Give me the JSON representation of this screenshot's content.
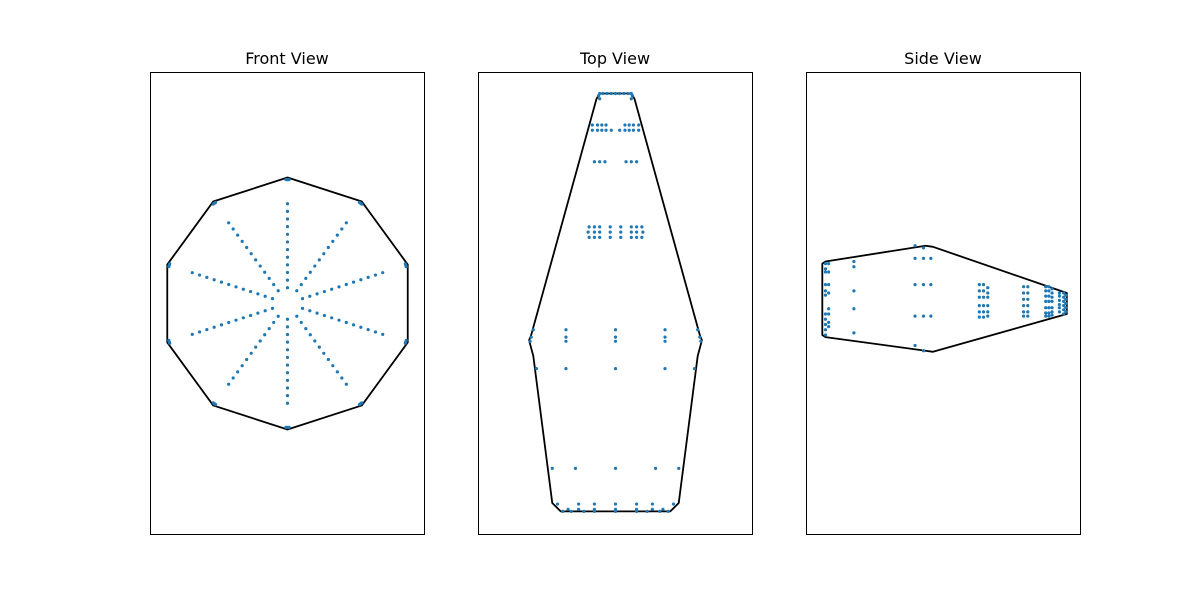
{
  "chart_data": [
    {
      "type": "scatter",
      "title": "Front View",
      "xlabel": "",
      "ylabel": "",
      "axes_visible": false,
      "xlim": [
        -1.3,
        1.3
      ],
      "ylim": [
        -2.2,
        2.2
      ],
      "equal_aspect": true,
      "outline": {
        "shape": "decagon",
        "vertices": [
          [
            0,
            1.2
          ],
          [
            0.705,
            0.971
          ],
          [
            1.141,
            0.371
          ],
          [
            1.141,
            -0.371
          ],
          [
            0.705,
            -0.971
          ],
          [
            0,
            -1.2
          ],
          [
            -0.705,
            -0.971
          ],
          [
            -1.141,
            -0.371
          ],
          [
            -1.141,
            0.371
          ],
          [
            -0.705,
            0.971
          ]
        ],
        "color": "#000000"
      },
      "points": {
        "pattern": "10 radial spokes of points from radius 0.15 to 0.95, plus clusters near each outline vertex",
        "spokes": 10,
        "radius_range": [
          0.15,
          0.95
        ],
        "points_per_spoke": 12,
        "vertex_cluster_radius": 1.18,
        "color": "#1f77b4"
      }
    },
    {
      "type": "scatter",
      "title": "Top View",
      "xlabel": "",
      "ylabel": "",
      "axes_visible": false,
      "xlim": [
        -1.3,
        1.3
      ],
      "ylim": [
        -2.2,
        2.2
      ],
      "equal_aspect": true,
      "outline": {
        "shape": "tapered hull",
        "vertices": [
          [
            -0.15,
            2.0
          ],
          [
            0.15,
            2.0
          ],
          [
            0.18,
            1.95
          ],
          [
            0.8,
            -0.3
          ],
          [
            0.82,
            -0.35
          ],
          [
            0.78,
            -0.5
          ],
          [
            0.6,
            -1.9
          ],
          [
            0.52,
            -1.98
          ],
          [
            -0.52,
            -1.98
          ],
          [
            -0.6,
            -1.9
          ],
          [
            -0.78,
            -0.5
          ],
          [
            -0.82,
            -0.35
          ],
          [
            -0.8,
            -0.3
          ],
          [
            -0.18,
            1.95
          ]
        ],
        "color": "#000000"
      },
      "points": [
        [
          -0.15,
          2.0
        ],
        [
          -0.12,
          2.0
        ],
        [
          -0.08,
          2.0
        ],
        [
          -0.04,
          2.0
        ],
        [
          0.0,
          2.0
        ],
        [
          0.04,
          2.0
        ],
        [
          0.08,
          2.0
        ],
        [
          0.12,
          2.0
        ],
        [
          0.15,
          2.0
        ],
        [
          -0.16,
          1.98
        ],
        [
          0.16,
          1.98
        ],
        [
          -0.15,
          1.95
        ],
        [
          0.15,
          1.95
        ],
        [
          -0.22,
          1.7
        ],
        [
          -0.17,
          1.7
        ],
        [
          -0.13,
          1.7
        ],
        [
          -0.09,
          1.7
        ],
        [
          0.09,
          1.7
        ],
        [
          0.13,
          1.7
        ],
        [
          0.17,
          1.7
        ],
        [
          0.22,
          1.7
        ],
        [
          -0.22,
          1.65
        ],
        [
          -0.17,
          1.65
        ],
        [
          -0.13,
          1.65
        ],
        [
          -0.09,
          1.65
        ],
        [
          -0.04,
          1.65
        ],
        [
          0.04,
          1.65
        ],
        [
          0.09,
          1.65
        ],
        [
          0.13,
          1.65
        ],
        [
          0.17,
          1.65
        ],
        [
          0.22,
          1.65
        ],
        [
          -0.2,
          1.35
        ],
        [
          -0.15,
          1.35
        ],
        [
          -0.1,
          1.35
        ],
        [
          0.1,
          1.35
        ],
        [
          0.15,
          1.35
        ],
        [
          0.2,
          1.35
        ],
        [
          -0.25,
          0.73
        ],
        [
          -0.2,
          0.73
        ],
        [
          -0.15,
          0.73
        ],
        [
          -0.05,
          0.73
        ],
        [
          0.05,
          0.73
        ],
        [
          0.15,
          0.73
        ],
        [
          0.2,
          0.73
        ],
        [
          0.25,
          0.73
        ],
        [
          -0.26,
          0.68
        ],
        [
          -0.2,
          0.68
        ],
        [
          -0.15,
          0.68
        ],
        [
          -0.05,
          0.68
        ],
        [
          0.05,
          0.68
        ],
        [
          0.15,
          0.68
        ],
        [
          0.2,
          0.68
        ],
        [
          0.26,
          0.68
        ],
        [
          -0.25,
          0.63
        ],
        [
          -0.2,
          0.63
        ],
        [
          -0.15,
          0.63
        ],
        [
          -0.05,
          0.63
        ],
        [
          0.05,
          0.63
        ],
        [
          0.15,
          0.63
        ],
        [
          0.2,
          0.63
        ],
        [
          0.25,
          0.63
        ],
        [
          -0.78,
          -0.25
        ],
        [
          -0.47,
          -0.25
        ],
        [
          0.0,
          -0.25
        ],
        [
          0.47,
          -0.25
        ],
        [
          0.78,
          -0.25
        ],
        [
          -0.8,
          -0.32
        ],
        [
          -0.47,
          -0.32
        ],
        [
          0.0,
          -0.32
        ],
        [
          0.47,
          -0.32
        ],
        [
          0.8,
          -0.32
        ],
        [
          -0.81,
          -0.36
        ],
        [
          -0.47,
          -0.36
        ],
        [
          0.0,
          -0.36
        ],
        [
          0.47,
          -0.36
        ],
        [
          0.81,
          -0.36
        ],
        [
          -0.75,
          -0.62
        ],
        [
          -0.47,
          -0.62
        ],
        [
          0.0,
          -0.62
        ],
        [
          0.47,
          -0.62
        ],
        [
          0.75,
          -0.62
        ],
        [
          -0.6,
          -1.57
        ],
        [
          -0.38,
          -1.57
        ],
        [
          0.0,
          -1.57
        ],
        [
          0.38,
          -1.57
        ],
        [
          0.6,
          -1.57
        ],
        [
          -0.55,
          -1.91
        ],
        [
          -0.35,
          -1.91
        ],
        [
          -0.2,
          -1.91
        ],
        [
          0.0,
          -1.91
        ],
        [
          0.2,
          -1.91
        ],
        [
          0.35,
          -1.91
        ],
        [
          0.55,
          -1.91
        ],
        [
          -0.45,
          -1.96
        ],
        [
          -0.35,
          -1.96
        ],
        [
          -0.2,
          -1.96
        ],
        [
          0.0,
          -1.96
        ],
        [
          0.2,
          -1.96
        ],
        [
          0.35,
          -1.96
        ],
        [
          0.45,
          -1.96
        ],
        [
          -0.5,
          -1.98
        ],
        [
          -0.42,
          -1.98
        ],
        [
          -0.3,
          -1.98
        ],
        [
          -0.2,
          -1.98
        ],
        [
          0.0,
          -1.98
        ],
        [
          0.2,
          -1.98
        ],
        [
          0.3,
          -1.98
        ],
        [
          0.42,
          -1.98
        ],
        [
          0.5,
          -1.98
        ]
      ],
      "point_color": "#1f77b4"
    },
    {
      "type": "scatter",
      "title": "Side View",
      "xlabel": "",
      "ylabel": "",
      "axes_visible": false,
      "xlim": [
        -1.3,
        1.3
      ],
      "ylim": [
        -2.2,
        2.2
      ],
      "equal_aspect": true,
      "outline": {
        "shape": "tapered profile",
        "vertices": [
          [
            -1.15,
            0.38
          ],
          [
            -1.12,
            0.4
          ],
          [
            -0.17,
            0.55
          ],
          [
            -0.1,
            0.54
          ],
          [
            1.17,
            0.1
          ],
          [
            1.17,
            -0.1
          ],
          [
            -0.1,
            -0.46
          ],
          [
            -0.17,
            -0.45
          ],
          [
            -1.12,
            -0.32
          ],
          [
            -1.15,
            -0.3
          ]
        ],
        "color": "#000000"
      },
      "points": [
        [
          -1.12,
          0.38
        ],
        [
          -1.12,
          0.33
        ],
        [
          -1.12,
          0.3
        ],
        [
          -1.12,
          0.18
        ],
        [
          -1.12,
          0.12
        ],
        [
          -1.12,
          0.08
        ],
        [
          -1.12,
          -0.1
        ],
        [
          -1.12,
          -0.15
        ],
        [
          -1.12,
          -0.2
        ],
        [
          -1.12,
          -0.25
        ],
        [
          -1.12,
          -0.3
        ],
        [
          -1.09,
          0.38
        ],
        [
          -1.09,
          0.3
        ],
        [
          -1.09,
          0.18
        ],
        [
          -1.09,
          0.1
        ],
        [
          -1.09,
          -0.05
        ],
        [
          -1.09,
          -0.1
        ],
        [
          -1.09,
          -0.18
        ],
        [
          -1.09,
          -0.22
        ],
        [
          -0.85,
          0.4
        ],
        [
          -0.85,
          0.35
        ],
        [
          -0.85,
          0.12
        ],
        [
          -0.85,
          -0.05
        ],
        [
          -0.85,
          -0.28
        ],
        [
          -0.27,
          0.55
        ],
        [
          -0.27,
          0.43
        ],
        [
          -0.27,
          0.18
        ],
        [
          -0.27,
          -0.12
        ],
        [
          -0.27,
          -0.4
        ],
        [
          -0.19,
          0.53
        ],
        [
          -0.12,
          0.43
        ],
        [
          -0.19,
          0.43
        ],
        [
          -0.19,
          0.18
        ],
        [
          -0.12,
          0.18
        ],
        [
          -0.19,
          -0.12
        ],
        [
          -0.12,
          -0.12
        ],
        [
          -0.19,
          -0.45
        ],
        [
          0.34,
          0.18
        ],
        [
          0.34,
          0.12
        ],
        [
          0.34,
          0.06
        ],
        [
          0.34,
          -0.02
        ],
        [
          0.34,
          -0.08
        ],
        [
          0.34,
          -0.13
        ],
        [
          0.38,
          0.18
        ],
        [
          0.38,
          0.12
        ],
        [
          0.38,
          0.06
        ],
        [
          0.38,
          -0.02
        ],
        [
          0.38,
          -0.08
        ],
        [
          0.38,
          -0.13
        ],
        [
          0.42,
          0.15
        ],
        [
          0.42,
          0.1
        ],
        [
          0.42,
          0.06
        ],
        [
          0.42,
          -0.02
        ],
        [
          0.42,
          -0.08
        ],
        [
          0.42,
          -0.12
        ],
        [
          0.76,
          0.16
        ],
        [
          0.76,
          0.1
        ],
        [
          0.76,
          0.04
        ],
        [
          0.76,
          -0.02
        ],
        [
          0.76,
          -0.08
        ],
        [
          0.76,
          -0.12
        ],
        [
          0.8,
          0.16
        ],
        [
          0.8,
          0.1
        ],
        [
          0.8,
          0.04
        ],
        [
          0.8,
          -0.02
        ],
        [
          0.8,
          -0.08
        ],
        [
          0.8,
          -0.12
        ],
        [
          0.97,
          0.16
        ],
        [
          0.97,
          0.12
        ],
        [
          0.97,
          0.07
        ],
        [
          0.97,
          0.02
        ],
        [
          0.97,
          -0.04
        ],
        [
          0.97,
          -0.09
        ],
        [
          0.97,
          -0.12
        ],
        [
          1.0,
          0.16
        ],
        [
          1.0,
          0.12
        ],
        [
          1.0,
          0.07
        ],
        [
          1.0,
          0.02
        ],
        [
          1.0,
          -0.04
        ],
        [
          1.0,
          -0.09
        ],
        [
          1.0,
          -0.12
        ],
        [
          1.03,
          0.14
        ],
        [
          1.03,
          0.1
        ],
        [
          1.03,
          0.06
        ],
        [
          1.03,
          0.02
        ],
        [
          1.03,
          -0.04
        ],
        [
          1.03,
          -0.08
        ],
        [
          1.03,
          -0.11
        ],
        [
          1.1,
          0.1
        ],
        [
          1.1,
          0.07
        ],
        [
          1.1,
          0.03
        ],
        [
          1.1,
          -0.01
        ],
        [
          1.1,
          -0.04
        ],
        [
          1.1,
          -0.08
        ],
        [
          1.14,
          0.1
        ],
        [
          1.14,
          0.06
        ],
        [
          1.14,
          0.02
        ],
        [
          1.14,
          -0.02
        ],
        [
          1.14,
          -0.06
        ],
        [
          1.14,
          -0.1
        ],
        [
          1.16,
          0.08
        ],
        [
          1.16,
          0.04
        ],
        [
          1.16,
          0.0
        ],
        [
          1.16,
          -0.04
        ],
        [
          1.16,
          -0.08
        ]
      ],
      "point_color": "#1f77b4"
    }
  ]
}
